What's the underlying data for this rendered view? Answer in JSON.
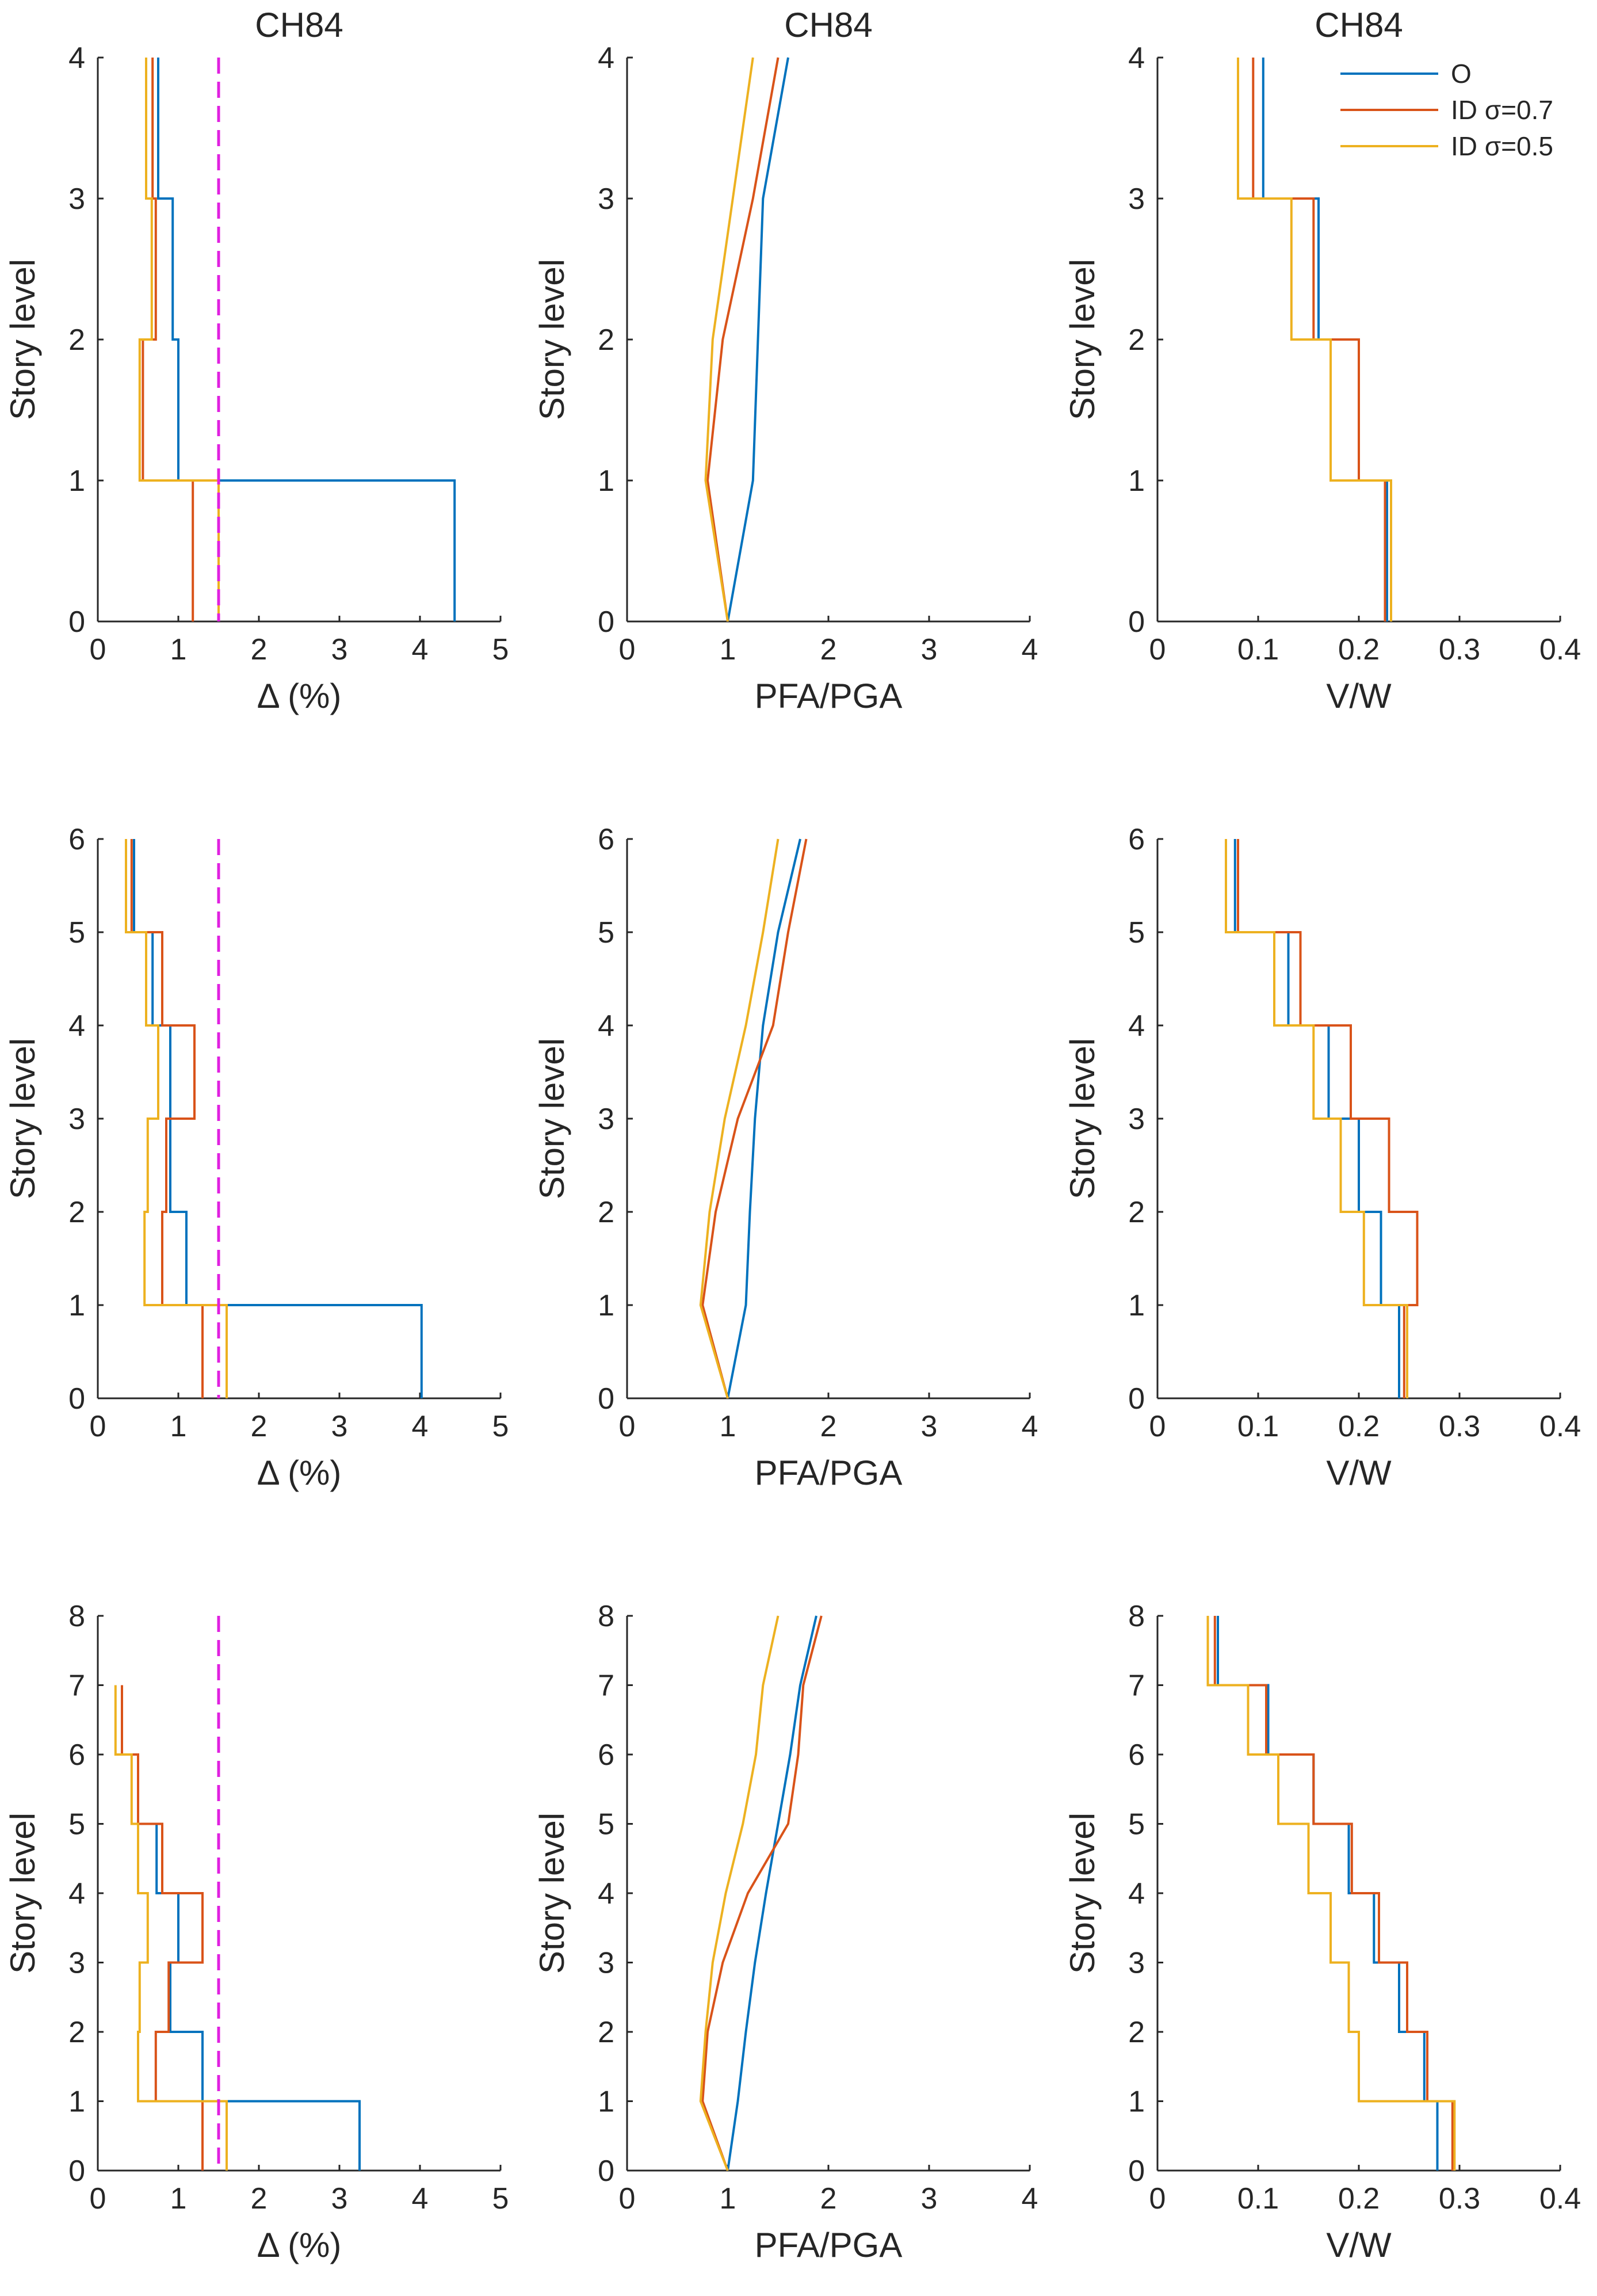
{
  "colors": {
    "O": "#0072BD",
    "ID σ=0.7": "#D95319",
    "ID σ=0.5": "#EDB120",
    "limit": "#E020E0",
    "axis": "#262626"
  },
  "legend": {
    "position": "top-right of top-right panel",
    "entries": [
      "O",
      "ID σ=0.7",
      "ID σ=0.5"
    ]
  },
  "chart_data": [
    {
      "type": "line",
      "step": true,
      "title": "CH84",
      "xlabel": "Δ (%)",
      "ylabel": "Story level",
      "xlim": [
        0,
        5
      ],
      "ylim": [
        0,
        4
      ],
      "xticks": [
        0,
        1,
        2,
        3,
        4,
        5
      ],
      "yticks": [
        0,
        1,
        2,
        3,
        4
      ],
      "limit_line": {
        "x": 1.5,
        "style": "dashed"
      },
      "series": [
        {
          "name": "O",
          "values": [
            4.43,
            1.0,
            0.93,
            0.75
          ]
        },
        {
          "name": "ID σ=0.7",
          "values": [
            1.18,
            0.56,
            0.72,
            0.68
          ]
        },
        {
          "name": "ID σ=0.5",
          "values": [
            1.5,
            0.52,
            0.67,
            0.6
          ]
        }
      ]
    },
    {
      "type": "line",
      "title": "CH84",
      "xlabel": "PFA/PGA",
      "ylabel": "Story level",
      "xlim": [
        0,
        4
      ],
      "ylim": [
        0,
        4
      ],
      "xticks": [
        0,
        1,
        2,
        3,
        4
      ],
      "yticks": [
        0,
        1,
        2,
        3,
        4
      ],
      "series": [
        {
          "name": "O",
          "values": [
            1.0,
            1.25,
            1.3,
            1.35,
            1.6
          ]
        },
        {
          "name": "ID σ=0.7",
          "values": [
            1.0,
            0.8,
            0.95,
            1.25,
            1.5
          ]
        },
        {
          "name": "ID σ=0.5",
          "values": [
            1.0,
            0.78,
            0.85,
            1.05,
            1.25
          ]
        }
      ]
    },
    {
      "type": "line",
      "step": true,
      "title": "CH84",
      "xlabel": "V/W",
      "ylabel": "Story level",
      "xlim": [
        0,
        0.4
      ],
      "ylim": [
        0,
        4
      ],
      "xticks": [
        0,
        0.1,
        0.2,
        0.3,
        0.4
      ],
      "yticks": [
        0,
        1,
        2,
        3,
        4
      ],
      "series": [
        {
          "name": "O",
          "values": [
            0.228,
            0.2,
            0.16,
            0.105
          ]
        },
        {
          "name": "ID σ=0.7",
          "values": [
            0.226,
            0.2,
            0.155,
            0.095
          ]
        },
        {
          "name": "ID σ=0.5",
          "values": [
            0.232,
            0.172,
            0.133,
            0.08
          ]
        }
      ]
    },
    {
      "type": "line",
      "step": true,
      "xlabel": "Δ (%)",
      "ylabel": "Story level",
      "xlim": [
        0,
        5
      ],
      "ylim": [
        0,
        6
      ],
      "xticks": [
        0,
        1,
        2,
        3,
        4,
        5
      ],
      "yticks": [
        0,
        1,
        2,
        3,
        4,
        5,
        6
      ],
      "limit_line": {
        "x": 1.5,
        "style": "dashed"
      },
      "series": [
        {
          "name": "O",
          "values": [
            4.02,
            1.1,
            0.9,
            0.9,
            0.68,
            0.45
          ]
        },
        {
          "name": "ID σ=0.7",
          "values": [
            1.3,
            0.8,
            0.85,
            1.2,
            0.8,
            0.42
          ]
        },
        {
          "name": "ID σ=0.5",
          "values": [
            1.6,
            0.58,
            0.62,
            0.75,
            0.6,
            0.35
          ]
        }
      ]
    },
    {
      "type": "line",
      "xlabel": "PFA/PGA",
      "ylabel": "Story level",
      "xlim": [
        0,
        4
      ],
      "ylim": [
        0,
        6
      ],
      "xticks": [
        0,
        1,
        2,
        3,
        4
      ],
      "yticks": [
        0,
        1,
        2,
        3,
        4,
        5,
        6
      ],
      "series": [
        {
          "name": "O",
          "values": [
            1.0,
            1.18,
            1.22,
            1.27,
            1.35,
            1.5,
            1.72
          ]
        },
        {
          "name": "ID σ=0.7",
          "values": [
            1.0,
            0.75,
            0.88,
            1.1,
            1.45,
            1.6,
            1.78
          ]
        },
        {
          "name": "ID σ=0.5",
          "values": [
            1.0,
            0.73,
            0.82,
            0.97,
            1.18,
            1.35,
            1.5
          ]
        }
      ]
    },
    {
      "type": "line",
      "step": true,
      "xlabel": "V/W",
      "ylabel": "Story level",
      "xlim": [
        0,
        0.4
      ],
      "ylim": [
        0,
        6
      ],
      "xticks": [
        0,
        0.1,
        0.2,
        0.3,
        0.4
      ],
      "yticks": [
        0,
        1,
        2,
        3,
        4,
        5,
        6
      ],
      "series": [
        {
          "name": "O",
          "values": [
            0.24,
            0.222,
            0.2,
            0.17,
            0.13,
            0.077
          ]
        },
        {
          "name": "ID σ=0.7",
          "values": [
            0.245,
            0.258,
            0.23,
            0.192,
            0.142,
            0.08
          ]
        },
        {
          "name": "ID σ=0.5",
          "values": [
            0.248,
            0.205,
            0.182,
            0.155,
            0.116,
            0.068
          ]
        }
      ]
    },
    {
      "type": "line",
      "step": true,
      "xlabel": "Δ (%)",
      "ylabel": "Story level",
      "xlim": [
        0,
        5
      ],
      "ylim": [
        0,
        8
      ],
      "xticks": [
        0,
        1,
        2,
        3,
        4,
        5
      ],
      "yticks": [
        0,
        1,
        2,
        3,
        4,
        5,
        6,
        7,
        8
      ],
      "limit_line": {
        "x": 1.5,
        "style": "dashed"
      },
      "series": [
        {
          "name": "O",
          "values": [
            3.25,
            1.3,
            0.9,
            1.0,
            0.73,
            0.5,
            0.3
          ]
        },
        {
          "name": "ID σ=0.7",
          "values": [
            1.3,
            0.72,
            0.88,
            1.3,
            0.8,
            0.5,
            0.3
          ]
        },
        {
          "name": "ID σ=0.5",
          "values": [
            1.6,
            0.5,
            0.52,
            0.62,
            0.5,
            0.42,
            0.22
          ]
        }
      ]
    },
    {
      "type": "line",
      "xlabel": "PFA/PGA",
      "ylabel": "Story level",
      "xlim": [
        0,
        4
      ],
      "ylim": [
        0,
        8
      ],
      "xticks": [
        0,
        1,
        2,
        3,
        4
      ],
      "yticks": [
        0,
        1,
        2,
        3,
        4,
        5,
        6,
        7,
        8
      ],
      "series": [
        {
          "name": "O",
          "values": [
            1.0,
            1.1,
            1.18,
            1.27,
            1.38,
            1.5,
            1.62,
            1.72,
            1.88
          ]
        },
        {
          "name": "ID σ=0.7",
          "values": [
            1.0,
            0.75,
            0.8,
            0.95,
            1.2,
            1.6,
            1.7,
            1.75,
            1.93
          ]
        },
        {
          "name": "ID σ=0.5",
          "values": [
            1.0,
            0.73,
            0.78,
            0.85,
            0.98,
            1.15,
            1.28,
            1.35,
            1.5
          ]
        }
      ]
    },
    {
      "type": "line",
      "step": true,
      "xlabel": "V/W",
      "ylabel": "Story level",
      "xlim": [
        0,
        0.4
      ],
      "ylim": [
        0,
        8
      ],
      "xticks": [
        0,
        0.1,
        0.2,
        0.3,
        0.4
      ],
      "yticks": [
        0,
        1,
        2,
        3,
        4,
        5,
        6,
        7,
        8
      ],
      "series": [
        {
          "name": "O",
          "values": [
            0.278,
            0.265,
            0.24,
            0.215,
            0.19,
            0.155,
            0.11,
            0.06
          ]
        },
        {
          "name": "ID σ=0.7",
          "values": [
            0.293,
            0.268,
            0.248,
            0.22,
            0.193,
            0.155,
            0.108,
            0.057
          ]
        },
        {
          "name": "ID σ=0.5",
          "values": [
            0.295,
            0.2,
            0.19,
            0.172,
            0.15,
            0.12,
            0.09,
            0.05
          ]
        }
      ]
    }
  ]
}
